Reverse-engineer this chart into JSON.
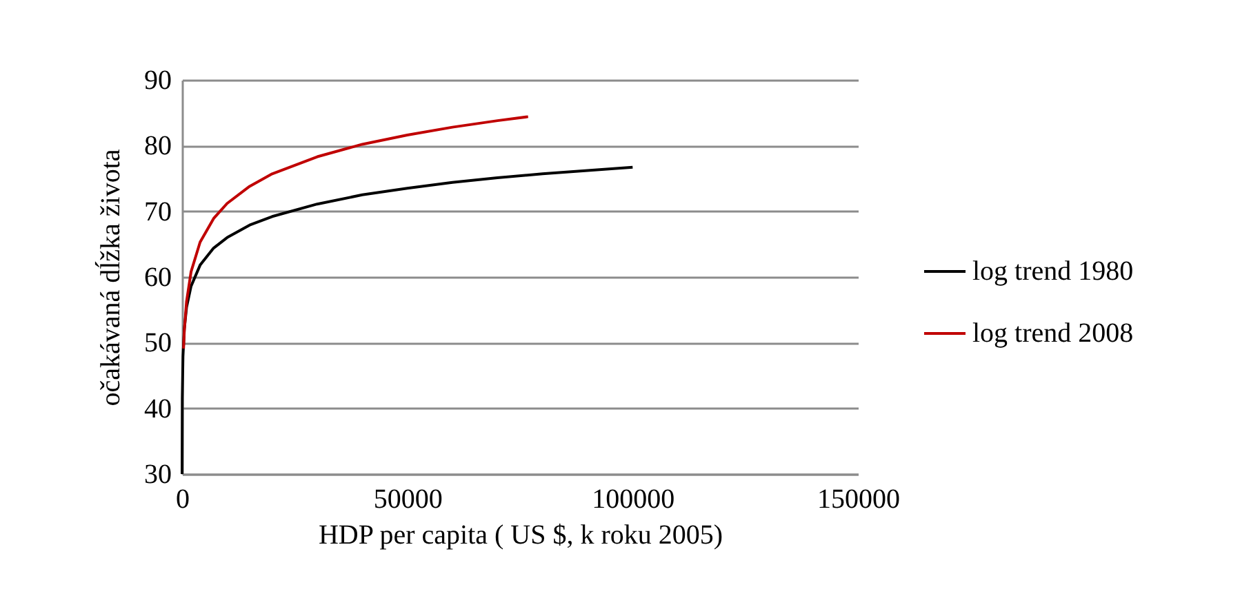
{
  "chart_data": {
    "type": "line",
    "xlabel": "HDP per capita ( US $, k roku 2005)",
    "ylabel": "očakávaná dĺžka života",
    "xlim": [
      0,
      150000
    ],
    "xticks": [
      0,
      50000,
      100000,
      150000
    ],
    "ylim": [
      30,
      90
    ],
    "yticks": [
      30,
      40,
      50,
      60,
      70,
      80,
      90
    ],
    "grid": "y",
    "legend": "right",
    "marker": "none",
    "line_style": "solid",
    "series": [
      {
        "name": "log trend 1980",
        "color": "#000000",
        "x": [
          4,
          50,
          200,
          500,
          1000,
          2000,
          4000,
          7000,
          10000,
          15000,
          20000,
          30000,
          40000,
          50000,
          60000,
          70000,
          80000,
          90000,
          100000
        ],
        "values": [
          30,
          41.5,
          47.9,
          52.1,
          55.4,
          58.6,
          61.8,
          64.4,
          66.0,
          67.9,
          69.2,
          71.1,
          72.5,
          73.5,
          74.4,
          75.1,
          75.7,
          76.2,
          76.7
        ]
      },
      {
        "name": "log trend 2008",
        "color": "#c00000",
        "x": [
          330,
          500,
          1000,
          2000,
          4000,
          7000,
          10000,
          15000,
          20000,
          30000,
          40000,
          50000,
          60000,
          70000,
          76800
        ],
        "values": [
          49.1,
          51.8,
          56.3,
          60.8,
          65.3,
          68.9,
          71.2,
          73.8,
          75.7,
          78.3,
          80.2,
          81.6,
          82.8,
          83.8,
          84.4
        ]
      }
    ]
  }
}
